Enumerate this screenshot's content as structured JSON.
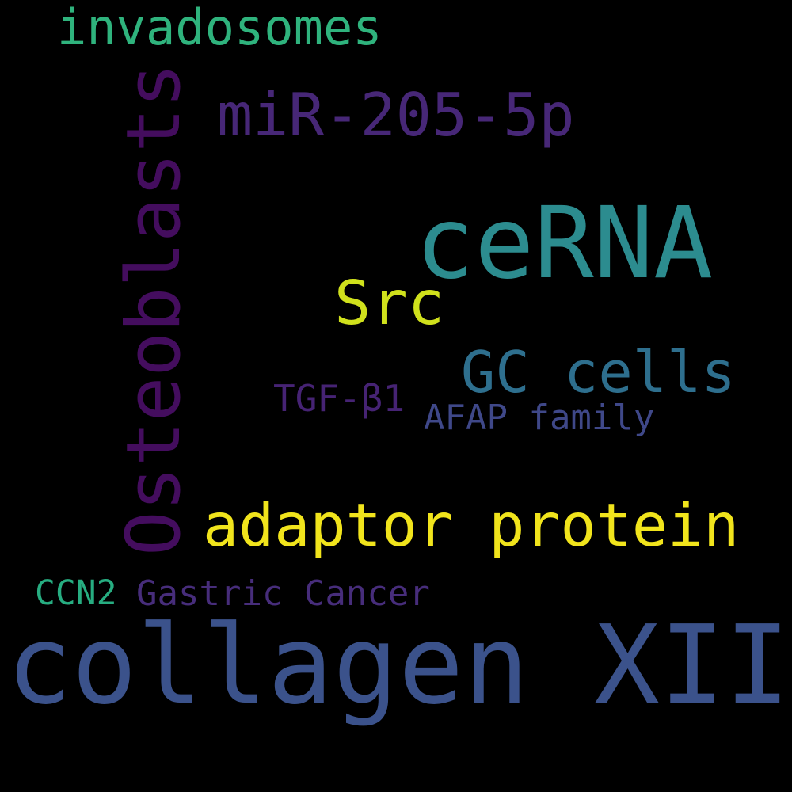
{
  "words": [
    {
      "id": "w-collagen",
      "text": "collagen XIIa",
      "color": "#3b528b"
    },
    {
      "id": "w-cerna",
      "text": "ceRNA",
      "color": "#2c8c8f"
    },
    {
      "id": "w-osteo",
      "text": "Osteoblasts",
      "color": "#440d5e"
    },
    {
      "id": "w-adaptor",
      "text": "adaptor protein",
      "color": "#f1e41c"
    },
    {
      "id": "w-mir",
      "text": "miR-205-5p",
      "color": "#472777"
    },
    {
      "id": "w-gc",
      "text": "GC cells",
      "color": "#2e6f8e"
    },
    {
      "id": "w-src",
      "text": "Src",
      "color": "#d0e11c"
    },
    {
      "id": "w-invado",
      "text": "invadosomes",
      "color": "#2fb37d"
    },
    {
      "id": "w-tgf",
      "text": "TGF-β1",
      "color": "#462374"
    },
    {
      "id": "w-afap",
      "text": "AFAP family",
      "color": "#3f4889"
    },
    {
      "id": "w-gastric",
      "text": "Gastric Cancer",
      "color": "#472d7b"
    },
    {
      "id": "w-ccn2",
      "text": "CCN2",
      "color": "#27ad81"
    }
  ]
}
